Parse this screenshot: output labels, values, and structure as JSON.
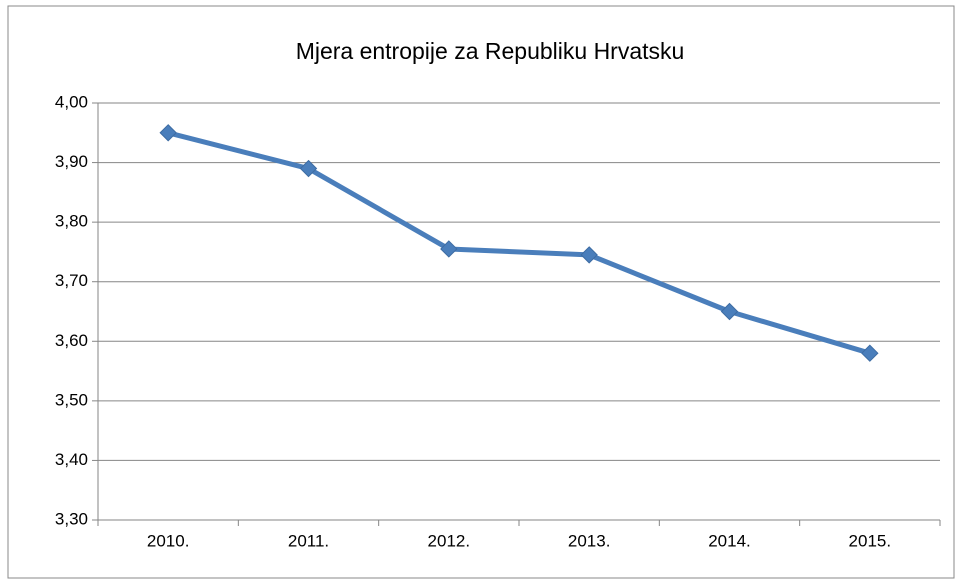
{
  "chart_data": {
    "type": "line",
    "title": "Mjera entropije za Republiku Hrvatsku",
    "categories": [
      "2010.",
      "2011.",
      "2012.",
      "2013.",
      "2014.",
      "2015."
    ],
    "series": [
      {
        "name": "Mjera entropije",
        "color": "#4a7ebb",
        "values": [
          3.95,
          3.89,
          3.755,
          3.745,
          3.65,
          3.58
        ]
      }
    ],
    "ylim": [
      3.3,
      4.0
    ],
    "yticks": [
      {
        "value": 3.3,
        "label": "3,30"
      },
      {
        "value": 3.4,
        "label": "3,40"
      },
      {
        "value": 3.5,
        "label": "3,50"
      },
      {
        "value": 3.6,
        "label": "3,60"
      },
      {
        "value": 3.7,
        "label": "3,70"
      },
      {
        "value": 3.8,
        "label": "3,80"
      },
      {
        "value": 3.9,
        "label": "3,90"
      },
      {
        "value": 4.0,
        "label": "4,00"
      }
    ],
    "grid": true
  }
}
